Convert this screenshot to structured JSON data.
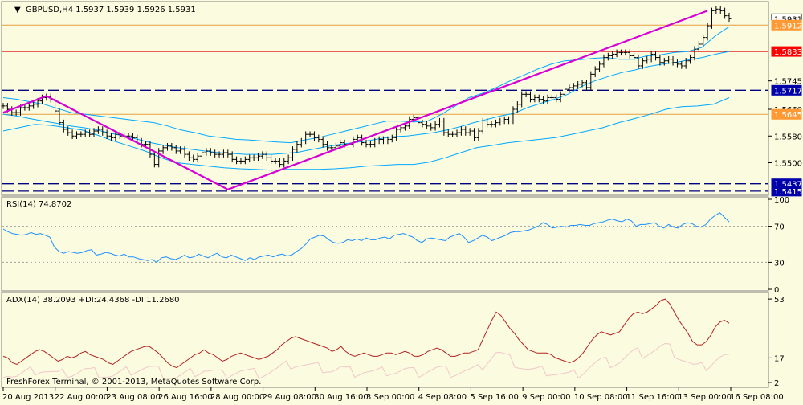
{
  "main_header": {
    "symbol_arrow": "▼",
    "text": "GBPUSD,H4  1.5937 1.5939 1.5926 1.5931"
  },
  "rsi_header": "RSI(14) 74.8702",
  "adx_header": "ADX(14) 38.2093 +DI:24.4368 -DI:11.2680",
  "footer": "FreshForex Terminal, © 2001-2013, MetaQuotes Software Corp.",
  "colors": {
    "background": "#fbfbe0",
    "bars": "#000000",
    "bollinger": "#00a8ff",
    "trendline": "#d400d4",
    "hline_orange": "#e8a040",
    "hline_red": "#dd0000",
    "hline_dash": "#000080",
    "rsi": "#1e90ff",
    "rsi_levels": "#a0a0a0",
    "adx": "#b22222",
    "adx_di": "#f0c8c8",
    "label_orange": "#ff9933",
    "label_red": "#ff0000",
    "label_blue": "#0000aa"
  },
  "price_labels": {
    "current": "1.5931",
    "orange": "1.5912",
    "red": "1.5833",
    "blue1": "1.5717",
    "orange2": "1.5645",
    "blue2": "1.5437",
    "blue3": "1.5415"
  },
  "chart_data": [
    {
      "type": "ohlc",
      "title": "GBPUSD,H4",
      "ohlc_header": [
        1.5937,
        1.5939,
        1.5926,
        1.5931
      ],
      "y_ticks": [
        1.5745,
        1.566,
        1.558,
        1.55
      ],
      "y_tick_labels": [
        "1.5745",
        "1.5660",
        "1.5580",
        "1.5500"
      ],
      "ylim": [
        1.5405,
        1.598
      ],
      "x_tick_labels": [
        "20 Aug 2013",
        "22 Aug 00:00",
        "23 Aug 08:00",
        "26 Aug 16:00",
        "28 Aug 00:00",
        "29 Aug 08:00",
        "30 Aug 16:00",
        "3 Sep 00:00",
        "4 Sep 08:00",
        "5 Sep 16:00",
        "9 Sep 00:00",
        "10 Sep 08:00",
        "11 Sep 16:00",
        "13 Sep 00:00",
        "16 Sep 08:00"
      ],
      "close_path": [
        1.567,
        1.566,
        1.565,
        1.565,
        1.5665,
        1.5665,
        1.567,
        1.5675,
        1.5685,
        1.5695,
        1.5698,
        1.569,
        1.5655,
        1.562,
        1.56,
        1.559,
        1.558,
        1.5585,
        1.5585,
        1.559,
        1.5585,
        1.5595,
        1.56,
        1.559,
        1.558,
        1.5575,
        1.5585,
        1.558,
        1.558,
        1.558,
        1.5575,
        1.5565,
        1.5555,
        1.5555,
        1.5525,
        1.5495,
        1.5535,
        1.5545,
        1.555,
        1.5545,
        1.5535,
        1.554,
        1.5525,
        1.5515,
        1.551,
        1.552,
        1.553,
        1.5535,
        1.553,
        1.5525,
        1.5525,
        1.553,
        1.5525,
        1.551,
        1.5505,
        1.5505,
        1.551,
        1.5515,
        1.5515,
        1.552,
        1.5525,
        1.5515,
        1.5505,
        1.5505,
        1.5495,
        1.5505,
        1.5515,
        1.554,
        1.5555,
        1.5565,
        1.5585,
        1.5585,
        1.5575,
        1.557,
        1.5555,
        1.5545,
        1.5545,
        1.555,
        1.556,
        1.5555,
        1.5555,
        1.557,
        1.5575,
        1.556,
        1.5555,
        1.5555,
        1.5565,
        1.557,
        1.5565,
        1.557,
        1.5575,
        1.56,
        1.5605,
        1.561,
        1.563,
        1.5635,
        1.562,
        1.5615,
        1.561,
        1.5605,
        1.5615,
        1.5625,
        1.559,
        1.5585,
        1.5585,
        1.559,
        1.56,
        1.559,
        1.5595,
        1.5575,
        1.5595,
        1.5625,
        1.5615,
        1.5615,
        1.562,
        1.5625,
        1.563,
        1.5625,
        1.566,
        1.5675,
        1.5705,
        1.5705,
        1.569,
        1.5695,
        1.569,
        1.5685,
        1.5695,
        1.5695,
        1.569,
        1.5705,
        1.572,
        1.5725,
        1.573,
        1.5735,
        1.574,
        1.5725,
        1.5765,
        1.578,
        1.5795,
        1.5815,
        1.582,
        1.5825,
        1.583,
        1.583,
        1.583,
        1.582,
        1.5815,
        1.579,
        1.5805,
        1.581,
        1.5825,
        1.5815,
        1.58,
        1.5805,
        1.581,
        1.58,
        1.5795,
        1.579,
        1.5805,
        1.5815,
        1.584,
        1.5855,
        1.5875,
        1.591,
        1.5955,
        1.596,
        1.5955,
        1.594,
        1.5931
      ],
      "series": [
        {
          "name": "Bollinger upper",
          "values": [
            1.5695,
            1.569,
            1.5682,
            1.5675,
            1.5662,
            1.565,
            1.5645,
            1.564,
            1.5635,
            1.563,
            1.5625,
            1.562,
            1.561,
            1.5598,
            1.559,
            1.558,
            1.5575,
            1.557,
            1.5568,
            1.5565,
            1.5562,
            1.556,
            1.5568,
            1.5575,
            1.5585,
            1.5595,
            1.5605,
            1.5615,
            1.5625,
            1.5625,
            1.5622,
            1.5625,
            1.5645,
            1.567,
            1.5695,
            1.5708,
            1.5725,
            1.5745,
            1.5762,
            1.578,
            1.5795,
            1.5805,
            1.5808,
            1.5812,
            1.5815,
            1.581,
            1.581,
            1.582,
            1.5823,
            1.583,
            1.5833,
            1.5845,
            1.588,
            1.5907
          ]
        },
        {
          "name": "Bollinger middle",
          "values": [
            1.5645,
            1.564,
            1.5632,
            1.5625,
            1.5618,
            1.561,
            1.5605,
            1.5598,
            1.5588,
            1.558,
            1.557,
            1.556,
            1.5552,
            1.5545,
            1.554,
            1.5535,
            1.553,
            1.5528,
            1.5525,
            1.5525,
            1.5525,
            1.5528,
            1.5532,
            1.554,
            1.5548,
            1.5555,
            1.556,
            1.5565,
            1.5572,
            1.5578,
            1.558,
            1.5585,
            1.559,
            1.5598,
            1.5608,
            1.562,
            1.563,
            1.564,
            1.5648,
            1.5665,
            1.5678,
            1.569,
            1.5705,
            1.5728,
            1.5745,
            1.5758,
            1.577,
            1.5778,
            1.5788,
            1.5795,
            1.58,
            1.5808,
            1.5815,
            1.5825,
            1.5833
          ]
        },
        {
          "name": "Bollinger lower",
          "values": [
            1.5595,
            1.5605,
            1.5615,
            1.5612,
            1.5605,
            1.5598,
            1.5582,
            1.5565,
            1.555,
            1.5535,
            1.5515,
            1.55,
            1.5495,
            1.549,
            1.5485,
            1.5482,
            1.548,
            1.5478,
            1.548,
            1.548,
            1.548,
            1.5482,
            1.5485,
            1.549,
            1.5492,
            1.5495,
            1.5495,
            1.5502,
            1.5515,
            1.553,
            1.5545,
            1.5552,
            1.556,
            1.5565,
            1.557,
            1.5575,
            1.5585,
            1.5595,
            1.5605,
            1.562,
            1.5632,
            1.5645,
            1.566,
            1.5668,
            1.567,
            1.5675,
            1.5695
          ]
        },
        {
          "name": "Trendline",
          "values": [
            1.565,
            1.57,
            1.542,
            1.5955
          ]
        }
      ],
      "horizontal_lines": [
        {
          "value": 1.5912,
          "label": "1.5912",
          "style": "solid",
          "color": "orange"
        },
        {
          "value": 1.5833,
          "label": "1.5833",
          "style": "solid",
          "color": "red"
        },
        {
          "value": 1.5717,
          "label": "1.5717",
          "style": "dashed",
          "color": "navy"
        },
        {
          "value": 1.5645,
          "label": "1.5645",
          "style": "solid",
          "color": "orange"
        },
        {
          "value": 1.5437,
          "label": "1.5437",
          "style": "dashed",
          "color": "navy"
        },
        {
          "value": 1.5415,
          "label": "1.5415",
          "style": "dashed",
          "color": "navy"
        }
      ]
    },
    {
      "type": "line",
      "title": "RSI(14) 74.8702",
      "ylim": [
        0,
        100
      ],
      "y_ticks": [
        100,
        70,
        30,
        0
      ],
      "levels": [
        70,
        30
      ],
      "values": [
        67,
        64,
        62,
        61,
        60,
        61,
        63,
        61,
        62,
        60,
        58,
        47,
        42,
        40,
        42,
        41,
        40,
        41,
        43,
        44,
        38,
        39,
        41,
        40,
        38,
        37,
        39,
        36,
        36,
        34,
        33,
        32,
        33,
        30,
        35,
        36,
        34,
        33,
        35,
        38,
        35,
        36,
        39,
        37,
        35,
        38,
        40,
        36,
        35,
        38,
        36,
        34,
        32,
        35,
        33,
        36,
        37,
        38,
        36,
        38,
        39,
        37,
        38,
        42,
        45,
        50,
        56,
        58,
        60,
        59,
        55,
        52,
        51,
        52,
        55,
        54,
        56,
        54,
        57,
        55,
        55,
        57,
        58,
        56,
        60,
        61,
        62,
        60,
        58,
        54,
        52,
        56,
        57,
        56,
        55,
        54,
        58,
        60,
        62,
        58,
        52,
        54,
        57,
        60,
        58,
        54,
        56,
        58,
        60,
        63,
        64,
        64,
        65,
        66,
        68,
        70,
        74,
        72,
        68,
        69,
        70,
        69,
        71,
        71,
        72,
        71,
        71,
        73,
        74,
        75,
        77,
        78,
        76,
        75,
        78,
        76,
        70,
        72,
        72,
        73,
        74,
        70,
        68,
        72,
        69,
        68,
        72,
        74,
        73,
        70,
        69,
        72,
        78,
        82,
        85,
        80,
        74.87
      ]
    },
    {
      "type": "line",
      "title": "ADX(14) 38.2093 +DI:24.4368 -DI:11.2680",
      "ylim": [
        0,
        56
      ],
      "y_ticks": [
        53,
        17,
        2
      ],
      "series": [
        {
          "name": "ADX",
          "values": [
            18,
            17,
            14,
            13,
            15,
            17,
            19,
            21,
            22,
            21,
            19,
            17,
            15,
            16,
            18,
            17,
            18,
            20,
            21,
            19,
            18,
            17,
            16,
            14,
            13,
            15,
            17,
            19,
            21,
            22,
            23,
            24,
            24,
            22,
            20,
            17,
            14,
            12,
            11,
            13,
            15,
            17,
            19,
            20,
            22,
            20,
            19,
            17,
            15,
            16,
            18,
            19,
            20,
            19,
            18,
            17,
            16,
            17,
            18,
            20,
            22,
            25,
            27,
            29,
            30,
            29,
            28,
            27,
            26,
            25,
            24,
            23,
            21,
            22,
            24,
            21,
            19,
            18,
            19,
            20,
            19,
            18,
            18,
            19,
            20,
            20,
            19,
            20,
            21,
            20,
            18,
            18,
            19,
            21,
            22,
            23,
            22,
            20,
            18,
            18,
            19,
            20,
            20,
            21,
            22,
            28,
            34,
            40,
            45,
            43,
            39,
            35,
            32,
            28,
            25,
            22,
            21,
            20,
            20,
            20,
            19,
            17,
            16,
            15,
            14,
            15,
            17,
            20,
            24,
            28,
            31,
            33,
            32,
            31,
            32,
            33,
            37,
            41,
            44,
            45,
            44,
            45,
            47,
            49,
            52,
            53,
            50,
            45,
            40,
            36,
            32,
            27,
            25,
            25,
            27,
            31,
            36,
            39,
            40,
            38.21
          ]
        },
        {
          "name": "+DI",
          "values": [
            24.44
          ]
        },
        {
          "name": "-DI",
          "values": [
            11.27
          ]
        }
      ]
    }
  ]
}
